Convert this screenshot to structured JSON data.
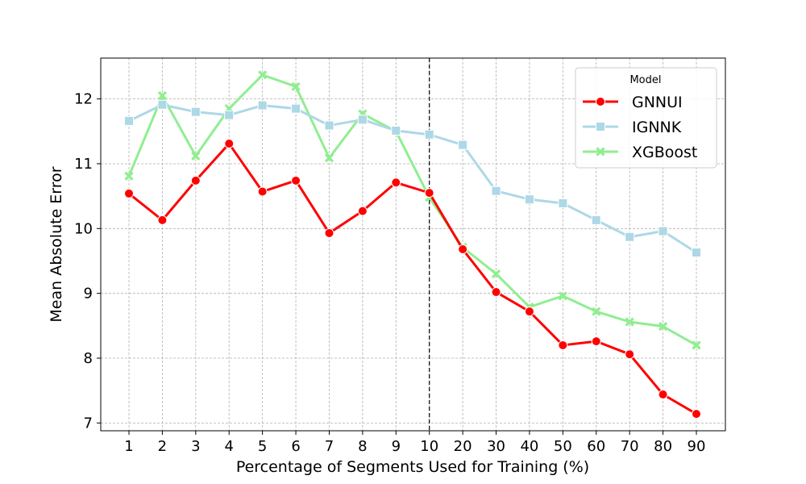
{
  "chart_data": {
    "type": "line",
    "categories": [
      "1",
      "2",
      "3",
      "4",
      "5",
      "6",
      "7",
      "8",
      "9",
      "10",
      "20",
      "30",
      "40",
      "50",
      "60",
      "70",
      "80",
      "90"
    ],
    "xlabel": "Percentage of Segments Used for Training (%)",
    "ylabel": "Mean Absolute Error",
    "ylim": [
      6.88,
      12.63
    ],
    "yticks": [
      7,
      8,
      9,
      10,
      11,
      12
    ],
    "grid": true,
    "vline_at_category": "10",
    "legend": {
      "title": "Model",
      "placement": "top-right"
    },
    "series": [
      {
        "name": "GNNUI",
        "color": "#ff0000",
        "marker": "circle",
        "values": [
          10.54,
          10.13,
          10.74,
          11.31,
          10.57,
          10.74,
          9.93,
          10.27,
          10.71,
          10.55,
          9.68,
          9.02,
          8.72,
          8.2,
          8.26,
          8.06,
          7.44,
          7.14
        ]
      },
      {
        "name": "IGNNK",
        "color": "#add8e6",
        "marker": "square",
        "values": [
          11.66,
          11.91,
          11.8,
          11.75,
          11.9,
          11.85,
          11.59,
          11.68,
          11.51,
          11.45,
          11.29,
          10.58,
          10.45,
          10.39,
          10.13,
          9.87,
          9.96,
          9.63
        ]
      },
      {
        "name": "XGBoost",
        "color": "#90ee90",
        "marker": "x",
        "values": [
          10.81,
          12.05,
          11.12,
          11.85,
          12.37,
          12.19,
          11.09,
          11.77,
          11.5,
          10.48,
          9.71,
          9.3,
          8.79,
          8.96,
          8.72,
          8.56,
          8.49,
          8.2
        ]
      }
    ]
  }
}
